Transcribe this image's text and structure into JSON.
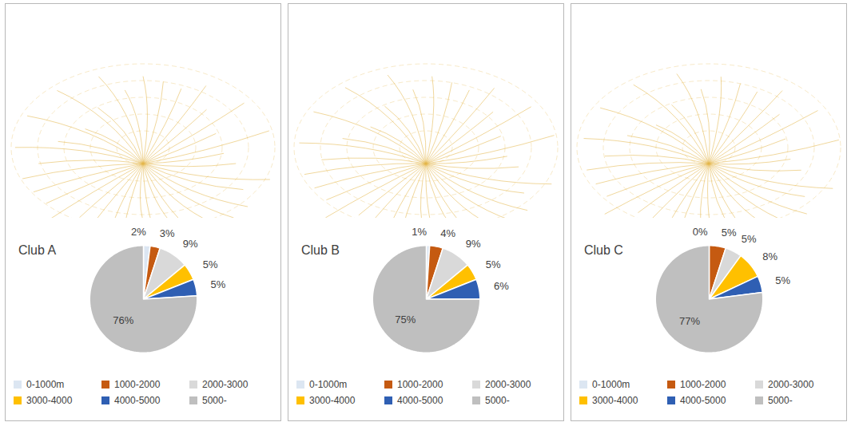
{
  "chart_data": [
    {
      "type": "pie",
      "title": "Club A",
      "categories": [
        "0-1000m",
        "1000-2000",
        "2000-3000",
        "3000-4000",
        "4000-5000",
        "5000-"
      ],
      "values": [
        2,
        3,
        9,
        5,
        5,
        76
      ],
      "value_labels": [
        "2%",
        "3%",
        "9%",
        "5%",
        "5%",
        "76%"
      ],
      "colors": [
        "#dce6f2",
        "#c55a11",
        "#d9d9d9",
        "#ffc000",
        "#2f5fb3",
        "#bfbfbf"
      ],
      "data_labels": true,
      "legend": "bottom"
    },
    {
      "type": "pie",
      "title": "Club B",
      "categories": [
        "0-1000m",
        "1000-2000",
        "2000-3000",
        "3000-4000",
        "4000-5000",
        "5000-"
      ],
      "values": [
        1,
        4,
        9,
        5,
        6,
        75
      ],
      "value_labels": [
        "1%",
        "4%",
        "9%",
        "5%",
        "6%",
        "75%"
      ],
      "colors": [
        "#dce6f2",
        "#c55a11",
        "#d9d9d9",
        "#ffc000",
        "#2f5fb3",
        "#bfbfbf"
      ],
      "data_labels": true,
      "legend": "bottom"
    },
    {
      "type": "pie",
      "title": "Club C",
      "categories": [
        "0-1000m",
        "1000-2000",
        "2000-3000",
        "3000-4000",
        "4000-5000",
        "5000-"
      ],
      "values": [
        0,
        5,
        5,
        8,
        5,
        77
      ],
      "value_labels": [
        "0%",
        "5%",
        "5%",
        "8%",
        "5%",
        "77%"
      ],
      "colors": [
        "#dce6f2",
        "#c55a11",
        "#d9d9d9",
        "#ffc000",
        "#2f5fb3",
        "#bfbfbf"
      ],
      "data_labels": true,
      "legend": "bottom"
    }
  ]
}
